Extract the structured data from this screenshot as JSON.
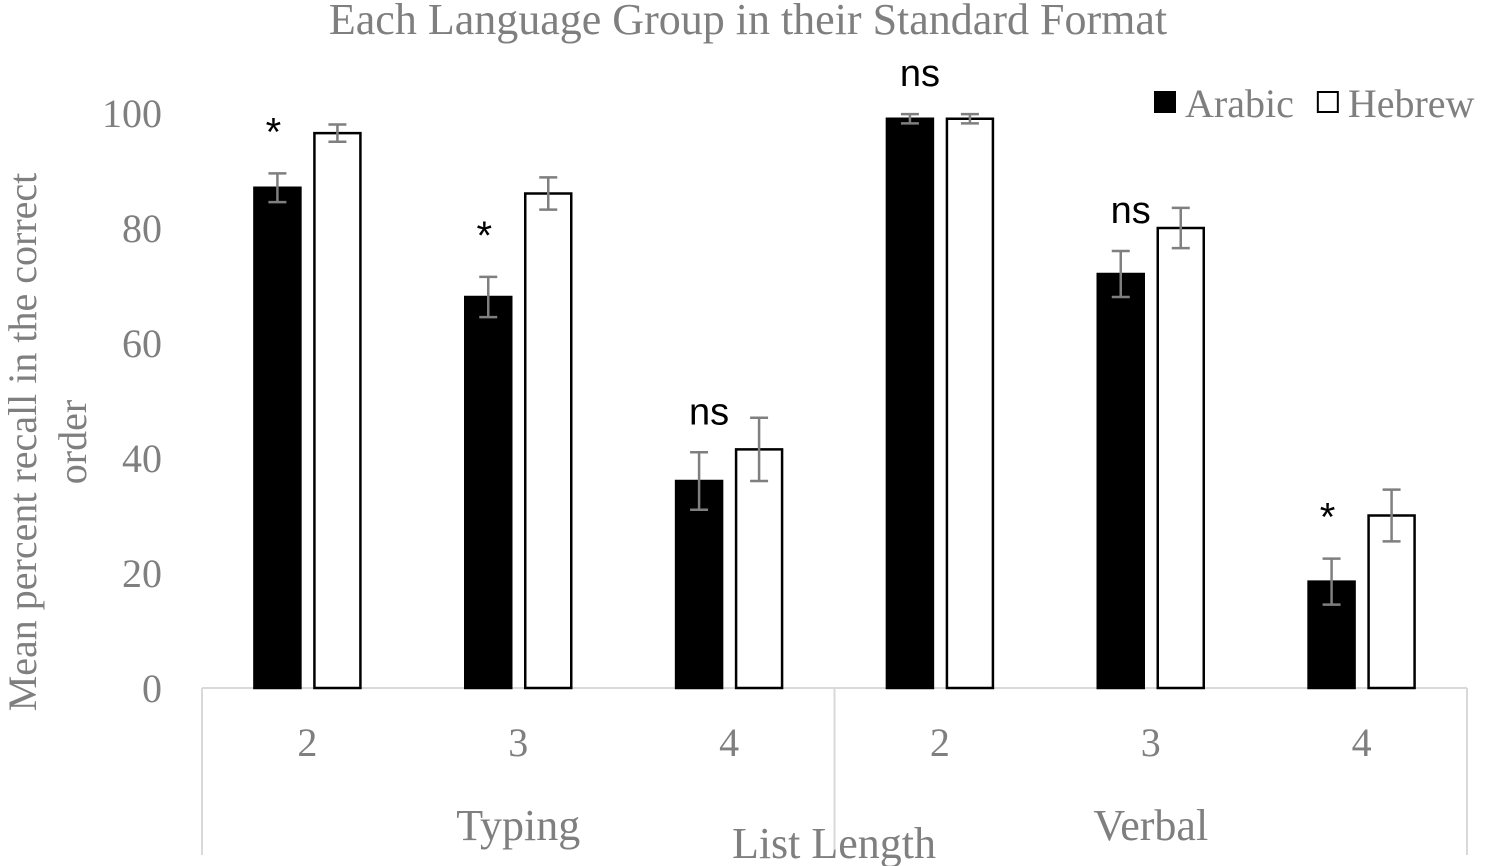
{
  "chart_data": {
    "type": "bar",
    "title": "Each Language Group in their Standard Format",
    "ylabel": "Mean percent recall in the correct order",
    "xlabel": "List Length",
    "ylim": [
      0,
      100
    ],
    "yticks": [
      0,
      20,
      40,
      60,
      80,
      100
    ],
    "groups": [
      {
        "label": "Typing",
        "categories": [
          "2",
          "3",
          "4"
        ]
      },
      {
        "label": "Verbal",
        "categories": [
          "2",
          "3",
          "4"
        ]
      }
    ],
    "categories": [
      "2",
      "3",
      "4",
      "2",
      "3",
      "4"
    ],
    "series": [
      {
        "name": "Arabic",
        "fill": "#000000",
        "values": [
          87,
          68,
          36,
          99,
          72,
          18.5
        ],
        "errors": [
          2.5,
          3.5,
          5,
          0.8,
          4,
          4
        ]
      },
      {
        "name": "Hebrew",
        "fill": "#ffffff",
        "values": [
          96.5,
          86,
          41.5,
          99,
          80,
          30
        ],
        "errors": [
          1.5,
          2.8,
          5.5,
          0.8,
          3.5,
          4.5
        ]
      }
    ],
    "annotations": [
      "*",
      "*",
      "ns",
      "ns",
      "ns",
      "*"
    ],
    "legend_position": "top-right",
    "grid": false,
    "colors": {
      "text": "#7f7f7f",
      "axis": "#d9d9d9",
      "error": "#7f7f7f"
    }
  }
}
